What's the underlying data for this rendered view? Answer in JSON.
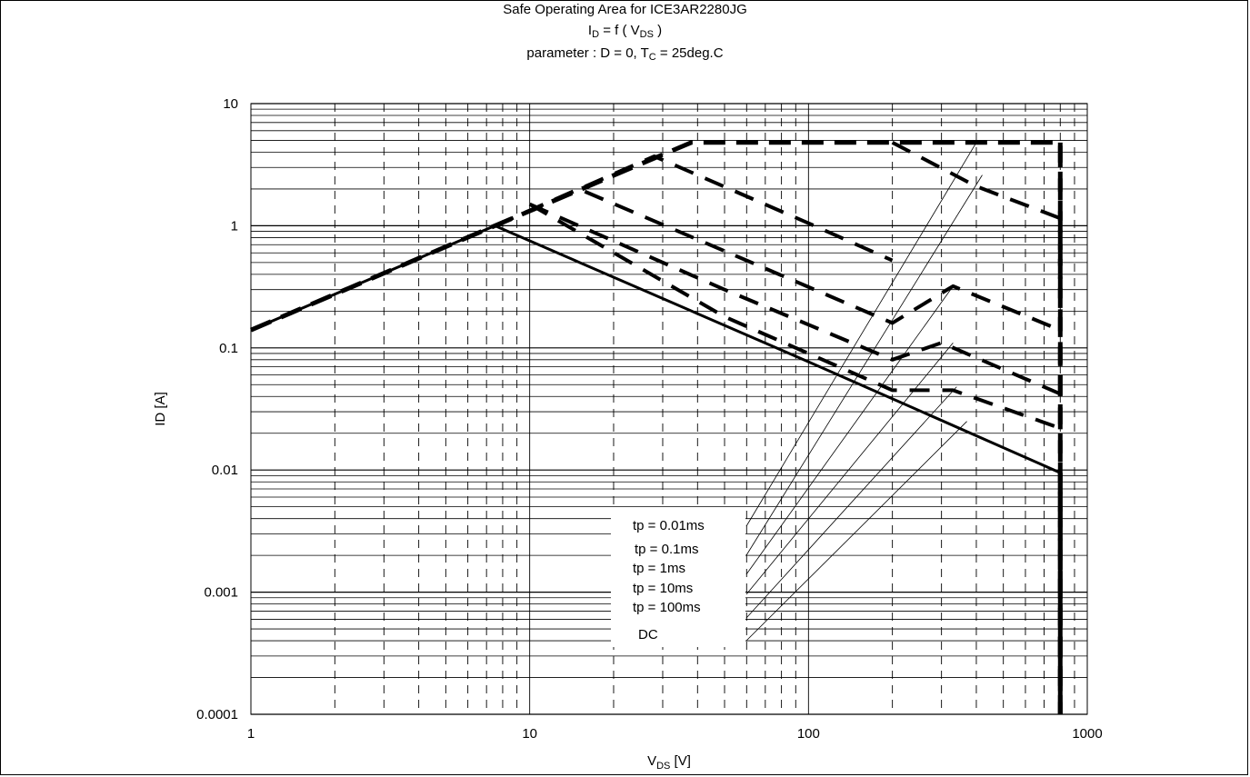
{
  "chart_data": {
    "type": "line",
    "title": "Safe Operating Area for ICE3AR2280JG",
    "subtitle_main": "I",
    "subtitle_sub": "D",
    "subtitle_mid": " = f ( V",
    "subtitle_sub2": "DS",
    "subtitle_end": " )",
    "param_prefix": "parameter : D = 0, T",
    "param_sub": "C",
    "param_suffix": " = 25deg.C",
    "xlabel_main": "V",
    "xlabel_sub": "DS",
    "xlabel_unit": " [V]",
    "ylabel": "ID [A]",
    "x_scale": "log",
    "y_scale": "log",
    "xlim": [
      1,
      1000
    ],
    "ylim": [
      0.0001,
      10
    ],
    "grid": true,
    "x_tick_labels": [
      {
        "value": 1,
        "label": "1"
      },
      {
        "value": 10,
        "label": "10"
      },
      {
        "value": 100,
        "label": "100"
      },
      {
        "value": 1000,
        "label": "1000"
      }
    ],
    "y_tick_labels": [
      {
        "value": 10,
        "label": "10"
      },
      {
        "value": 1,
        "label": "1"
      },
      {
        "value": 0.1,
        "label": "0.1"
      },
      {
        "value": 0.01,
        "label": "0.01"
      },
      {
        "value": 0.001,
        "label": "0.001"
      },
      {
        "value": 0.0001,
        "label": "0.0001"
      }
    ],
    "series": [
      {
        "name": "tp = 0.01ms",
        "style": "dashed-thick",
        "points": [
          [
            1,
            0.14
          ],
          [
            7.5,
            1.0
          ],
          [
            38,
            4.8
          ],
          [
            800,
            4.8
          ],
          [
            800,
            0.0001
          ]
        ]
      },
      {
        "name": "tp = 0.1ms",
        "style": "dashed",
        "points": [
          [
            7.5,
            1.0
          ],
          [
            28,
            3.7
          ],
          [
            100,
            1.05
          ],
          [
            200,
            0.5
          ],
          [
            400,
            2.1
          ],
          [
            800,
            1.1
          ]
        ],
        "segments": [
          [
            [
              7.5,
              1.0
            ],
            [
              28,
              3.7
            ],
            [
              100,
              1.05
            ],
            [
              200,
              0.52
            ]
          ],
          [
            [
              200,
              4.8
            ],
            [
              400,
              2.1
            ],
            [
              800,
              1.15
            ]
          ]
        ]
      },
      {
        "name": "tp = 1ms",
        "style": "dashed",
        "segments": [
          [
            [
              7.5,
              1.0
            ],
            [
              15,
              2.0
            ],
            [
              60,
              0.52
            ],
            [
              200,
              0.16
            ],
            [
              330,
              0.32
            ],
            [
              800,
              0.14
            ]
          ]
        ]
      },
      {
        "name": "tp = 10ms",
        "style": "dashed",
        "segments": [
          [
            [
              10,
              1.5
            ],
            [
              50,
              0.3
            ],
            [
              200,
              0.08
            ],
            [
              300,
              0.11
            ],
            [
              800,
              0.042
            ]
          ]
        ]
      },
      {
        "name": "tp = 100ms",
        "style": "dashed",
        "segments": [
          [
            [
              10,
              1.5
            ],
            [
              50,
              0.18
            ],
            [
              200,
              0.045
            ],
            [
              330,
              0.045
            ],
            [
              800,
              0.022
            ]
          ]
        ]
      },
      {
        "name": "DC",
        "style": "solid-thick",
        "points": [
          [
            1,
            0.14
          ],
          [
            7.5,
            1.0
          ],
          [
            100,
            0.077
          ],
          [
            800,
            0.0095
          ]
        ]
      }
    ],
    "legend": {
      "placement": "bottom-center",
      "entries": [
        {
          "label": "tp = 0.01ms",
          "target": [
            400,
            4.8
          ]
        },
        {
          "label": "tp = 0.1ms",
          "target": [
            420,
            2.6
          ]
        },
        {
          "label": "tp = 1ms",
          "target": [
            330,
            0.32
          ]
        },
        {
          "label": "tp = 10ms",
          "target": [
            330,
            0.11
          ]
        },
        {
          "label": "tp = 100ms",
          "target": [
            340,
            0.048
          ]
        },
        {
          "label": "DC",
          "target": [
            370,
            0.025
          ]
        }
      ]
    }
  }
}
